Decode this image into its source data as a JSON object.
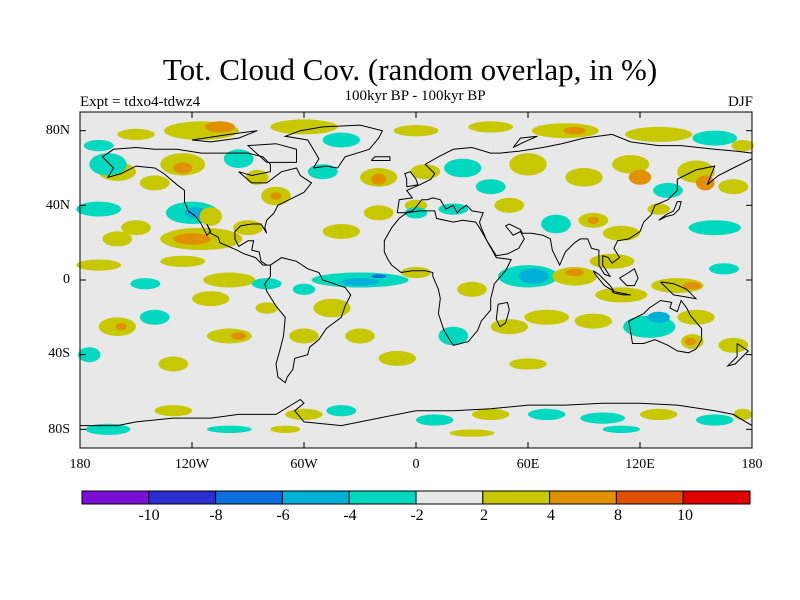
{
  "title": "Tot. Cloud Cov. (random overlap, in %)",
  "subtitle": "100kyr BP - 100kyr BP",
  "experiment": "Expt = tdxo4-tdwz4",
  "season": "DJF",
  "lat_labels": [
    "80N",
    "40N",
    "0",
    "40S",
    "80S"
  ],
  "lon_labels": [
    "180",
    "120W",
    "60W",
    "0",
    "60E",
    "120E",
    "180"
  ],
  "colorbar": {
    "labels": [
      "-10",
      "-8",
      "-6",
      "-4",
      "-2",
      "2",
      "4",
      "8",
      "10"
    ],
    "colors": [
      "#7b0fd6",
      "#2a2ed0",
      "#0b6fe0",
      "#00b0d8",
      "#00d8c0",
      "#e8e8e8",
      "#c8c800",
      "#e09000",
      "#e05000",
      "#e00000"
    ]
  },
  "map_colors": {
    "background": "#e8e8e8",
    "pos_low": "#c8c800",
    "pos_mid": "#e09000",
    "neg_low": "#00d8c0",
    "neg_mid": "#00b0d8",
    "neg_high": "#0b6fe0",
    "coast": "#000000"
  }
}
